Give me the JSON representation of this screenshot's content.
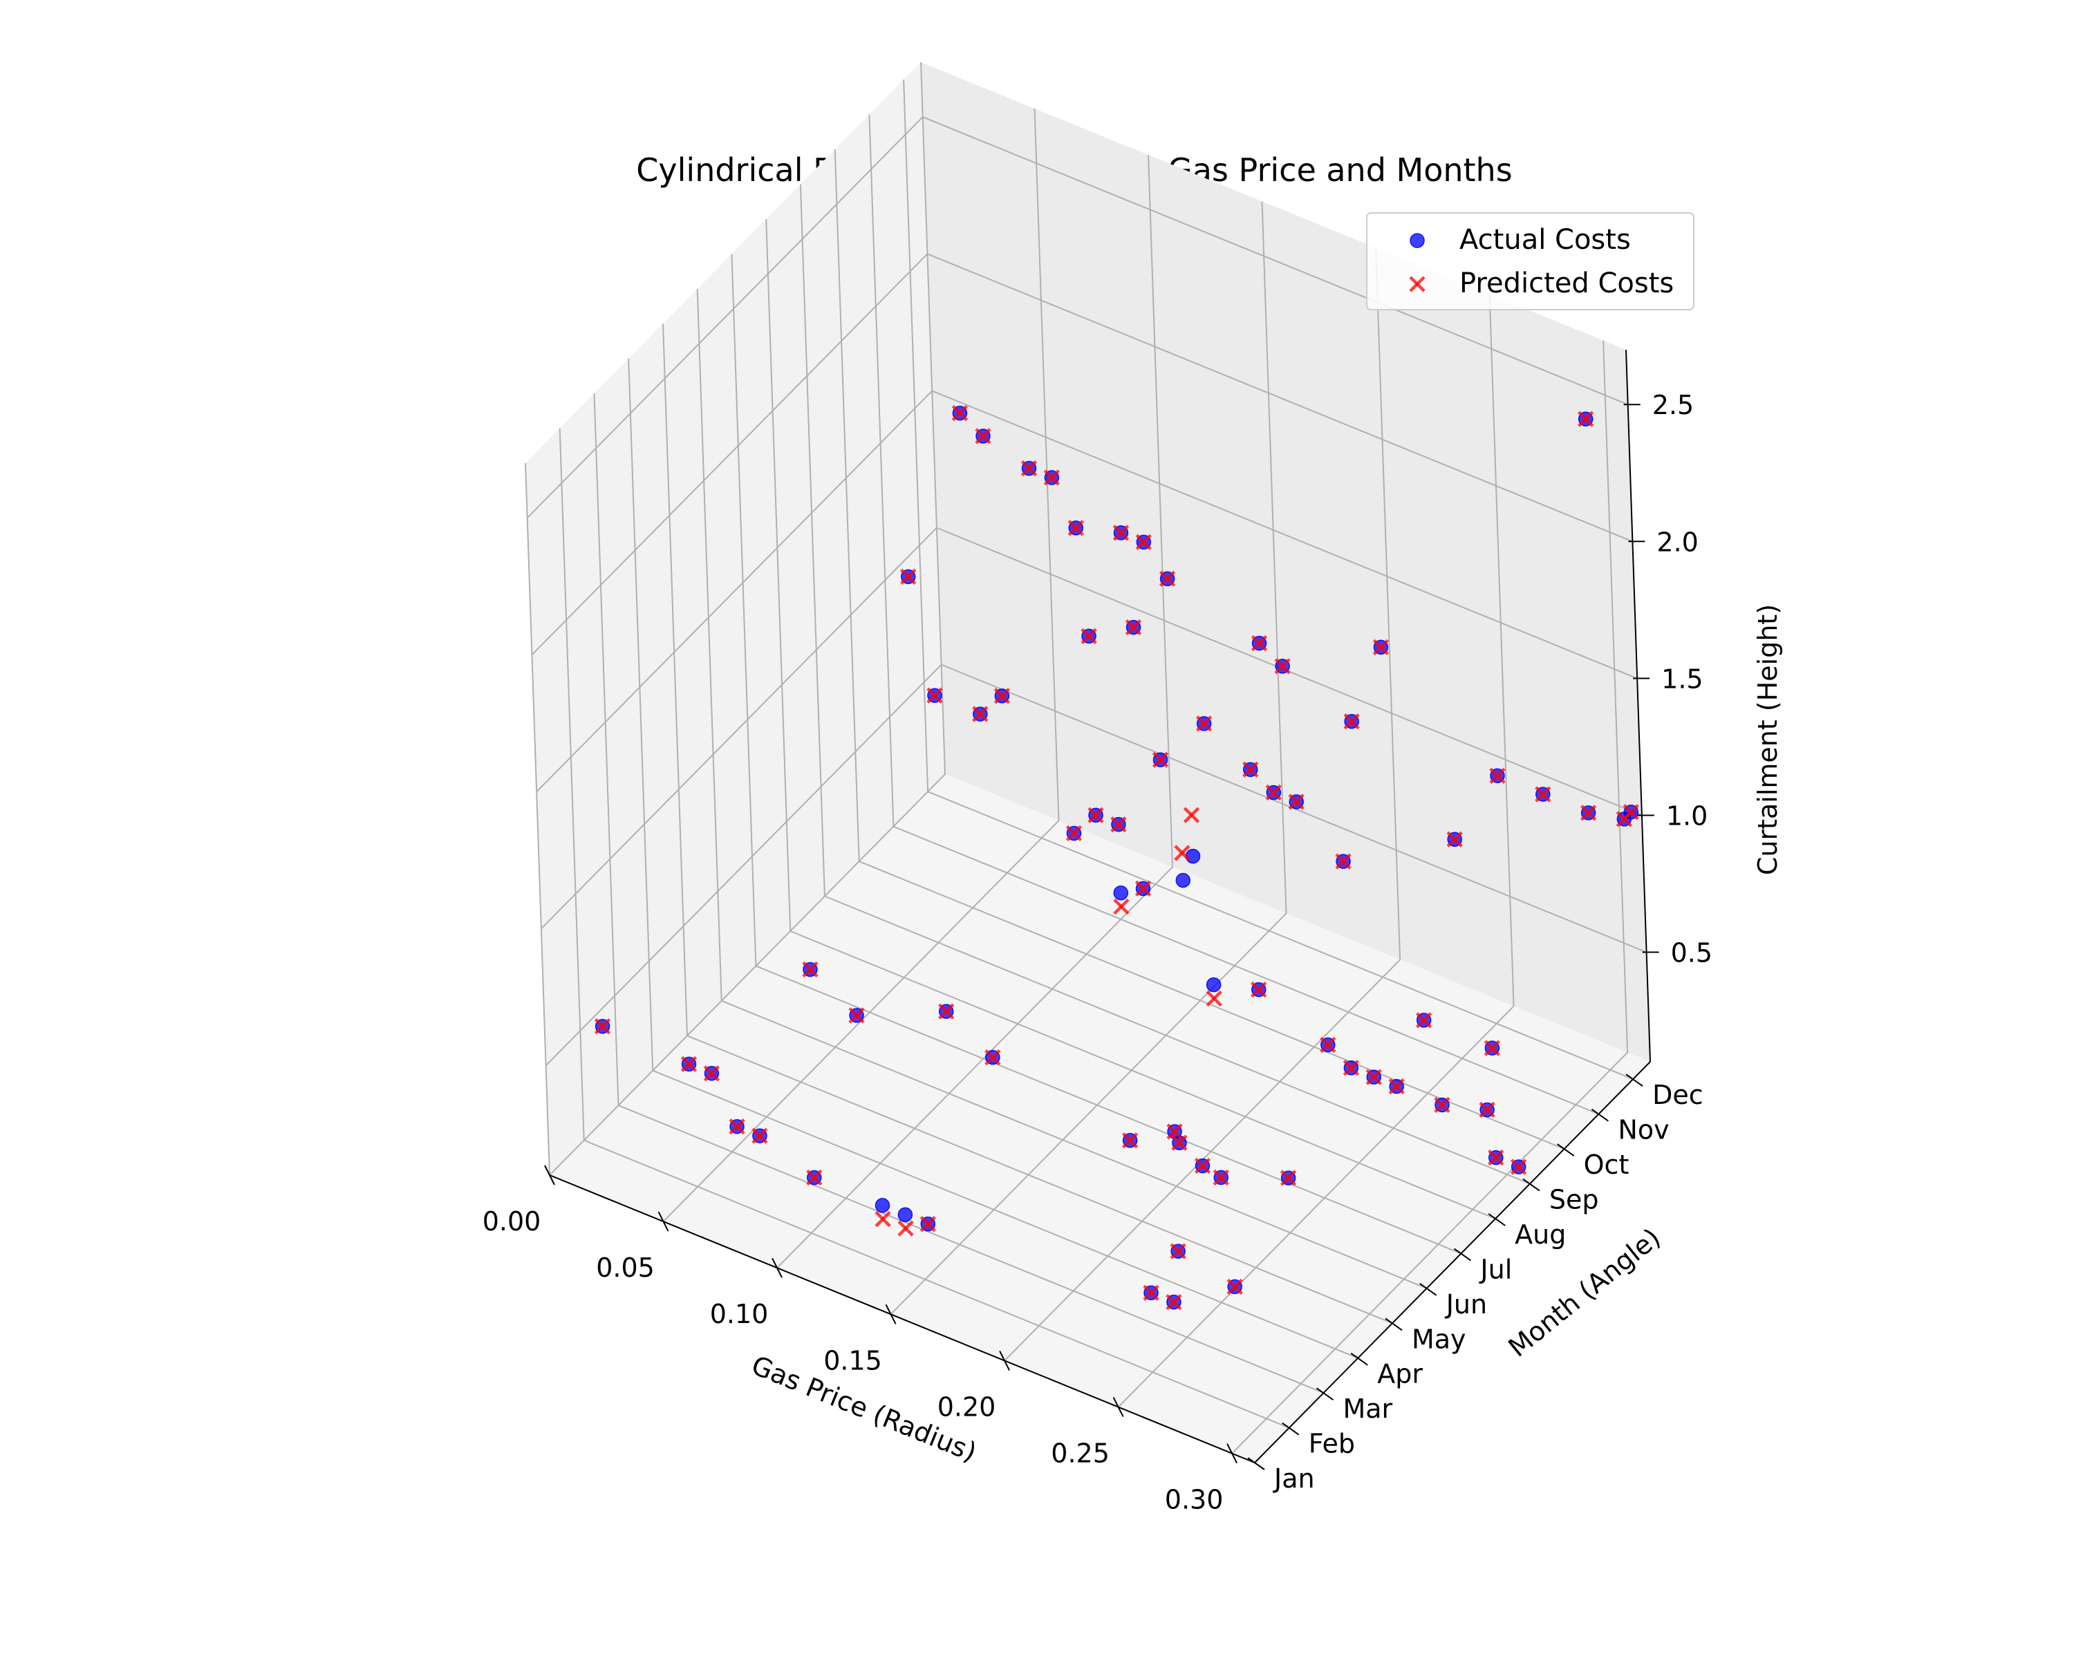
{
  "chart_data": {
    "type": "scatter",
    "projection": "3d",
    "title": "Cylindrical Plot of Curtailment vs Gas Price and Months",
    "xlabel": "Gas Price (Radius)",
    "ylabel": "Month (Angle)",
    "zlabel": "Curtailment (Height)",
    "x_ticks": [
      "0.00",
      "0.05",
      "0.10",
      "0.15",
      "0.20",
      "0.25",
      "0.30"
    ],
    "y_ticks": [
      "Jan",
      "Feb",
      "Mar",
      "Apr",
      "May",
      "Jun",
      "Jul",
      "Aug",
      "Sep",
      "Oct",
      "Nov",
      "Dec"
    ],
    "z_ticks": [
      "0.5",
      "1.0",
      "1.5",
      "2.0",
      "2.5"
    ],
    "xlim": [
      0,
      0.31
    ],
    "ylim": [
      0,
      11.5
    ],
    "zlim": [
      0.1,
      2.7
    ],
    "grid": true,
    "legend_position": "top-right",
    "series": [
      {
        "name": "Actual Costs",
        "marker": "circle",
        "color": "#0000ff",
        "points": [
          [
            0.01,
            1.0,
            0.55
          ],
          [
            0.04,
            1.5,
            0.45
          ],
          [
            0.05,
            1.5,
            0.45
          ],
          [
            0.07,
            0.9,
            0.4
          ],
          [
            0.08,
            0.9,
            0.4
          ],
          [
            0.11,
            0.5,
            0.4
          ],
          [
            0.14,
            0.5,
            0.4
          ],
          [
            0.15,
            0.5,
            0.4
          ],
          [
            0.16,
            0.5,
            0.4
          ],
          [
            0.26,
            0.4,
            0.5
          ],
          [
            0.27,
            0.4,
            0.5
          ],
          [
            0.26,
            1.2,
            0.55
          ],
          [
            0.28,
            1.5,
            0.45
          ],
          [
            0.24,
            2.6,
            0.7
          ],
          [
            0.25,
            2.6,
            0.65
          ],
          [
            0.04,
            5.0,
            0.35
          ],
          [
            0.06,
            5.0,
            0.25
          ],
          [
            0.1,
            5.0,
            0.4
          ],
          [
            0.12,
            5.0,
            0.3
          ],
          [
            0.18,
            5.0,
            0.2
          ],
          [
            0.2,
            5.0,
            0.3
          ],
          [
            0.22,
            5.0,
            0.2
          ],
          [
            0.25,
            5.0,
            0.3
          ],
          [
            0.05,
            7.5,
            1.5
          ],
          [
            0.06,
            7.5,
            1.1
          ],
          [
            0.08,
            7.5,
            1.1
          ],
          [
            0.09,
            7.5,
            1.2
          ],
          [
            0.12,
            7.5,
            0.8
          ],
          [
            0.13,
            7.5,
            0.9
          ],
          [
            0.14,
            7.5,
            0.9
          ],
          [
            0.14,
            7.5,
            0.65
          ],
          [
            0.15,
            7.5,
            0.7
          ],
          [
            0.18,
            7.5,
            0.45
          ],
          [
            0.2,
            7.5,
            0.5
          ],
          [
            0.23,
            7.5,
            0.4
          ],
          [
            0.24,
            7.5,
            0.35
          ],
          [
            0.25,
            7.5,
            0.35
          ],
          [
            0.26,
            7.5,
            0.35
          ],
          [
            0.28,
            7.5,
            0.35
          ],
          [
            0.3,
            7.5,
            0.4
          ],
          [
            0.3,
            7.7,
            0.2
          ],
          [
            0.31,
            7.7,
            0.2
          ],
          [
            0.27,
            7.7,
            0.6
          ],
          [
            0.3,
            7.7,
            0.6
          ],
          [
            0.16,
            8.0,
            0.7
          ],
          [
            0.16,
            8.3,
            0.75
          ],
          [
            0.09,
            10.0,
            1.1
          ],
          [
            0.11,
            10.0,
            1.2
          ],
          [
            0.12,
            10.0,
            0.75
          ],
          [
            0.14,
            10.0,
            0.95
          ],
          [
            0.16,
            10.0,
            0.85
          ],
          [
            0.17,
            10.0,
            0.8
          ],
          [
            0.18,
            10.0,
            0.8
          ],
          [
            0.2,
            10.0,
            0.65
          ],
          [
            0.22,
            10.0,
            1.5
          ],
          [
            0.25,
            10.0,
            0.9
          ],
          [
            0.27,
            10.0,
            1.2
          ],
          [
            0.29,
            10.0,
            1.2
          ],
          [
            0.31,
            10.0,
            1.2
          ],
          [
            0.31,
            10.3,
            2.6
          ],
          [
            0.02,
            11.0,
            1.55
          ],
          [
            0.03,
            11.0,
            1.5
          ],
          [
            0.05,
            11.0,
            1.45
          ],
          [
            0.06,
            11.0,
            1.45
          ],
          [
            0.07,
            11.0,
            1.3
          ],
          [
            0.09,
            11.0,
            1.35
          ],
          [
            0.1,
            11.0,
            1.35
          ],
          [
            0.11,
            11.0,
            1.25
          ],
          [
            0.15,
            11.0,
            1.15
          ],
          [
            0.16,
            11.0,
            1.1
          ],
          [
            0.19,
            11.0,
            1.0
          ],
          [
            0.31,
            11.0,
            1.05
          ],
          [
            0.31,
            11.2,
            1.05
          ]
        ]
      },
      {
        "name": "Predicted Costs",
        "marker": "x",
        "color": "#ff0000",
        "points": [
          [
            0.01,
            1.0,
            0.55
          ],
          [
            0.04,
            1.5,
            0.45
          ],
          [
            0.05,
            1.5,
            0.45
          ],
          [
            0.07,
            0.9,
            0.4
          ],
          [
            0.08,
            0.9,
            0.4
          ],
          [
            0.11,
            0.5,
            0.4
          ],
          [
            0.14,
            0.5,
            0.35
          ],
          [
            0.15,
            0.5,
            0.35
          ],
          [
            0.16,
            0.5,
            0.4
          ],
          [
            0.26,
            0.4,
            0.5
          ],
          [
            0.27,
            0.4,
            0.5
          ],
          [
            0.26,
            1.2,
            0.55
          ],
          [
            0.28,
            1.5,
            0.45
          ],
          [
            0.24,
            2.6,
            0.7
          ],
          [
            0.25,
            2.6,
            0.65
          ],
          [
            0.04,
            5.0,
            0.35
          ],
          [
            0.06,
            5.0,
            0.25
          ],
          [
            0.1,
            5.0,
            0.4
          ],
          [
            0.12,
            5.0,
            0.3
          ],
          [
            0.18,
            5.0,
            0.2
          ],
          [
            0.2,
            5.0,
            0.3
          ],
          [
            0.22,
            5.0,
            0.2
          ],
          [
            0.25,
            5.0,
            0.3
          ],
          [
            0.05,
            7.5,
            1.5
          ],
          [
            0.06,
            7.5,
            1.1
          ],
          [
            0.08,
            7.5,
            1.1
          ],
          [
            0.09,
            7.5,
            1.2
          ],
          [
            0.12,
            7.5,
            0.8
          ],
          [
            0.13,
            7.5,
            0.9
          ],
          [
            0.14,
            7.5,
            0.9
          ],
          [
            0.14,
            7.5,
            0.6
          ],
          [
            0.15,
            7.5,
            0.7
          ],
          [
            0.18,
            7.5,
            0.4
          ],
          [
            0.2,
            7.5,
            0.5
          ],
          [
            0.23,
            7.5,
            0.4
          ],
          [
            0.24,
            7.5,
            0.35
          ],
          [
            0.25,
            7.5,
            0.35
          ],
          [
            0.26,
            7.5,
            0.35
          ],
          [
            0.28,
            7.5,
            0.35
          ],
          [
            0.3,
            7.5,
            0.4
          ],
          [
            0.3,
            7.7,
            0.2
          ],
          [
            0.31,
            7.7,
            0.2
          ],
          [
            0.27,
            7.7,
            0.6
          ],
          [
            0.3,
            7.7,
            0.6
          ],
          [
            0.16,
            8.0,
            0.8
          ],
          [
            0.16,
            8.3,
            0.9
          ],
          [
            0.09,
            10.0,
            1.1
          ],
          [
            0.11,
            10.0,
            1.2
          ],
          [
            0.12,
            10.0,
            0.75
          ],
          [
            0.14,
            10.0,
            0.95
          ],
          [
            0.16,
            10.0,
            0.85
          ],
          [
            0.17,
            10.0,
            0.8
          ],
          [
            0.18,
            10.0,
            0.8
          ],
          [
            0.2,
            10.0,
            0.65
          ],
          [
            0.22,
            10.0,
            1.5
          ],
          [
            0.25,
            10.0,
            0.9
          ],
          [
            0.27,
            10.0,
            1.2
          ],
          [
            0.29,
            10.0,
            1.2
          ],
          [
            0.31,
            10.0,
            1.2
          ],
          [
            0.31,
            10.3,
            2.6
          ],
          [
            0.02,
            11.0,
            1.55
          ],
          [
            0.03,
            11.0,
            1.5
          ],
          [
            0.05,
            11.0,
            1.45
          ],
          [
            0.06,
            11.0,
            1.45
          ],
          [
            0.07,
            11.0,
            1.3
          ],
          [
            0.09,
            11.0,
            1.35
          ],
          [
            0.1,
            11.0,
            1.35
          ],
          [
            0.11,
            11.0,
            1.25
          ],
          [
            0.15,
            11.0,
            1.15
          ],
          [
            0.16,
            11.0,
            1.1
          ],
          [
            0.19,
            11.0,
            1.0
          ],
          [
            0.31,
            11.0,
            1.05
          ],
          [
            0.31,
            11.2,
            1.05
          ]
        ]
      }
    ]
  }
}
